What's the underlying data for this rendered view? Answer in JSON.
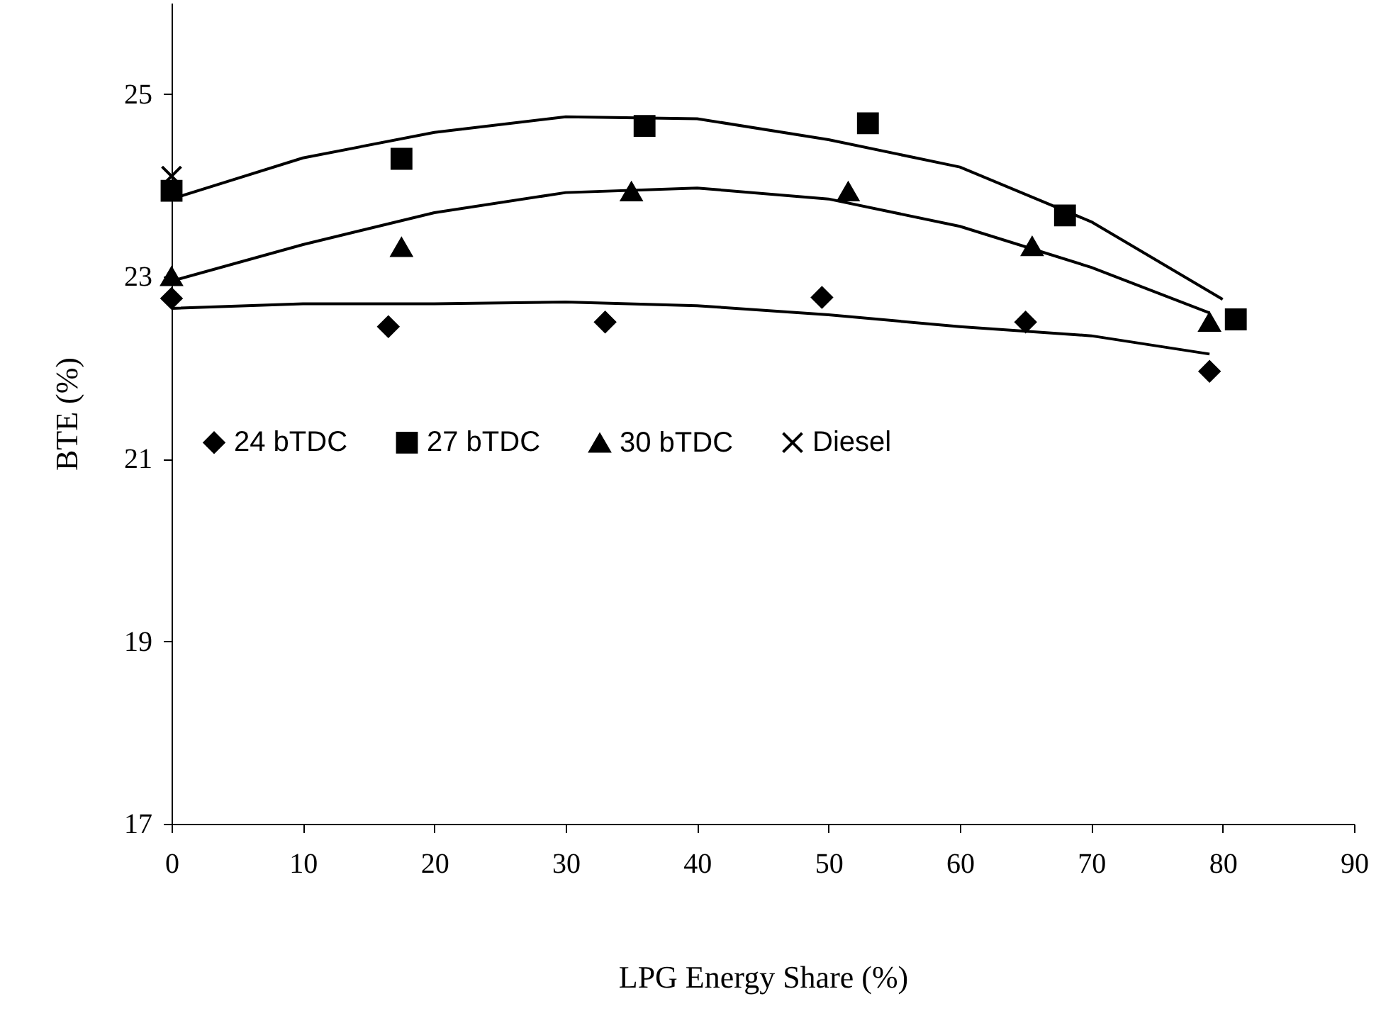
{
  "chart_data": {
    "type": "scatter",
    "xlabel": "LPG Energy Share (%)",
    "ylabel": "BTE (%)",
    "xlim": [
      0,
      90
    ],
    "xticks": [
      0,
      10,
      20,
      30,
      40,
      50,
      60,
      70,
      80,
      90
    ],
    "ylim": [
      17,
      26
    ],
    "yticks": [
      17,
      19,
      21,
      23,
      25
    ],
    "grid": false,
    "legend": "left",
    "series": [
      {
        "name": "24 bTDC",
        "color": "#000000",
        "marker": "diamond",
        "x": [
          0,
          16.5,
          33,
          49.5,
          65,
          79
        ],
        "values": [
          22.76,
          22.45,
          22.5,
          22.77,
          22.5,
          21.96
        ]
      },
      {
        "name": "27 bTDC",
        "color": "#000000",
        "marker": "square",
        "x": [
          0,
          17.5,
          36,
          53,
          68,
          81
        ],
        "values": [
          23.94,
          24.29,
          24.65,
          24.68,
          23.67,
          22.53
        ]
      },
      {
        "name": "30 bTDC",
        "color": "#000000",
        "marker": "triangle",
        "x": [
          0,
          17.5,
          35,
          51.5,
          65.5,
          79
        ],
        "values": [
          23.0,
          23.32,
          23.93,
          23.93,
          23.33,
          22.5
        ]
      },
      {
        "name": "Diesel",
        "color": "#000000",
        "marker": "cross",
        "x": [
          0
        ],
        "values": [
          24.1
        ]
      },
      {
        "type": "line",
        "color": "#000000",
        "line_style": "solid",
        "x": [
          0,
          10,
          20,
          30,
          40,
          50,
          60,
          70,
          79
        ],
        "values": [
          22.65,
          22.7,
          22.7,
          22.72,
          22.68,
          22.58,
          22.45,
          22.35,
          22.15
        ]
      },
      {
        "type": "line",
        "color": "#000000",
        "line_style": "solid",
        "x": [
          0,
          10,
          20,
          30,
          40,
          50,
          60,
          70,
          80
        ],
        "values": [
          23.85,
          24.3,
          24.58,
          24.75,
          24.73,
          24.5,
          24.2,
          23.6,
          22.75
        ]
      },
      {
        "type": "line",
        "color": "#000000",
        "line_style": "solid",
        "x": [
          0,
          10,
          20,
          30,
          40,
          50,
          60,
          70,
          79
        ],
        "values": [
          22.95,
          23.35,
          23.7,
          23.92,
          23.97,
          23.85,
          23.55,
          23.1,
          22.6
        ]
      }
    ]
  }
}
